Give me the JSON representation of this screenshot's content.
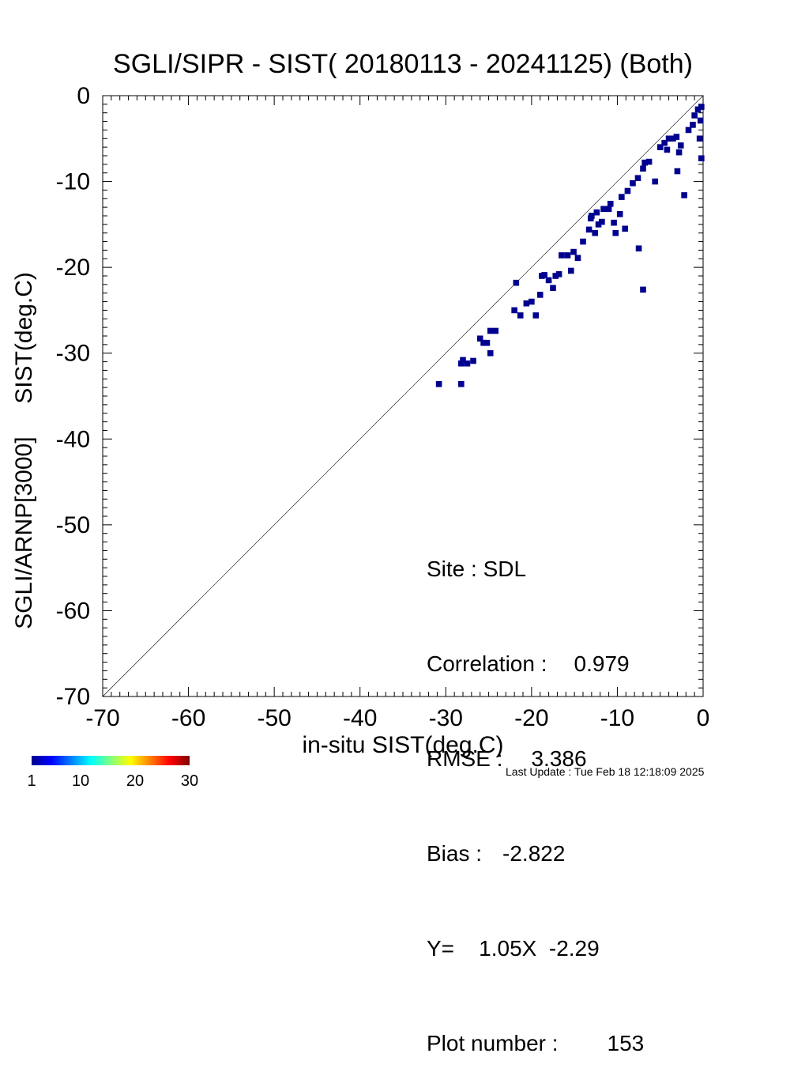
{
  "chart_data": {
    "type": "heatmap",
    "title": "SGLI/SIPR - SIST( 20180113 - 20241125) (Both)",
    "xlabel": "in-situ SIST(deg.C)",
    "ylabel": "SGLI/ARNP[3000]     SIST(deg.C)",
    "xlim": [
      -70,
      0
    ],
    "ylim": [
      -70,
      0
    ],
    "x_ticks": [
      "-70",
      "-60",
      "-50",
      "-40",
      "-30",
      "-20",
      "-10",
      "0"
    ],
    "y_ticks": [
      "0",
      "-10",
      "-20",
      "-30",
      "-40",
      "-50",
      "-60",
      "-70"
    ],
    "reference_line": "Y = X",
    "bin_size": 0.7,
    "cell_color": "#00008f",
    "colorbar": {
      "min": 1,
      "max": 30,
      "tick_labels": [
        "1",
        "10",
        "20",
        "30"
      ],
      "colors": [
        "#00008f",
        "#0000ff",
        "#0080ff",
        "#00ffff",
        "#80ff80",
        "#ffff00",
        "#ff8000",
        "#ff0000",
        "#800000"
      ]
    },
    "points": [
      [
        -30.8,
        -33.6
      ],
      [
        -28.2,
        -33.6
      ],
      [
        -28.2,
        -31.2
      ],
      [
        -27.5,
        -31.2
      ],
      [
        -26.8,
        -30.9
      ],
      [
        -28.0,
        -30.8
      ],
      [
        -26.0,
        -28.3
      ],
      [
        -25.2,
        -28.8
      ],
      [
        -24.8,
        -27.4
      ],
      [
        -24.2,
        -27.4
      ],
      [
        -25.6,
        -28.8
      ],
      [
        -24.8,
        -30.0
      ],
      [
        -22.0,
        -25.0
      ],
      [
        -21.3,
        -25.6
      ],
      [
        -20.6,
        -24.2
      ],
      [
        -20.0,
        -24.0
      ],
      [
        -19.5,
        -25.6
      ],
      [
        -21.8,
        -21.8
      ],
      [
        -19.0,
        -23.2
      ],
      [
        -18.8,
        -21.0
      ],
      [
        -18.0,
        -21.5
      ],
      [
        -17.5,
        -22.4
      ],
      [
        -18.5,
        -20.9
      ],
      [
        -17.2,
        -21.0
      ],
      [
        -16.8,
        -20.8
      ],
      [
        -15.8,
        -18.6
      ],
      [
        -15.1,
        -18.2
      ],
      [
        -15.4,
        -20.4
      ],
      [
        -16.5,
        -18.6
      ],
      [
        -14.6,
        -18.9
      ],
      [
        -14.0,
        -17.0
      ],
      [
        -13.3,
        -15.6
      ],
      [
        -12.6,
        -16.0
      ],
      [
        -13.0,
        -14.0
      ],
      [
        -12.2,
        -15.0
      ],
      [
        -11.6,
        -13.2
      ],
      [
        -11.0,
        -13.2
      ],
      [
        -10.4,
        -14.8
      ],
      [
        -9.7,
        -13.8
      ],
      [
        -10.2,
        -16.0
      ],
      [
        -9.1,
        -15.5
      ],
      [
        -9.5,
        -11.8
      ],
      [
        -8.8,
        -11.1
      ],
      [
        -8.2,
        -10.2
      ],
      [
        -7.6,
        -9.6
      ],
      [
        -7.0,
        -8.5
      ],
      [
        -6.8,
        -7.8
      ],
      [
        -6.3,
        -7.7
      ],
      [
        -5.6,
        -10.0
      ],
      [
        -5.0,
        -6.0
      ],
      [
        -4.5,
        -5.5
      ],
      [
        -4.0,
        -5.0
      ],
      [
        -3.5,
        -5.0
      ],
      [
        -3.1,
        -4.8
      ],
      [
        -2.6,
        -5.8
      ],
      [
        -3.0,
        -8.8
      ],
      [
        -2.2,
        -11.6
      ],
      [
        -1.7,
        -4.0
      ],
      [
        -1.2,
        -3.4
      ],
      [
        -1.0,
        -2.3
      ],
      [
        -0.6,
        -1.6
      ],
      [
        -0.2,
        -1.3
      ],
      [
        -0.3,
        -2.9
      ],
      [
        -0.4,
        -5.0
      ],
      [
        -0.2,
        -7.3
      ],
      [
        -2.8,
        -6.6
      ],
      [
        -7.5,
        -17.8
      ],
      [
        -7.0,
        -22.6
      ],
      [
        -13.1,
        -14.3
      ],
      [
        -12.4,
        -13.6
      ],
      [
        -11.8,
        -14.7
      ],
      [
        -10.8,
        -12.6
      ],
      [
        -4.2,
        -6.3
      ]
    ],
    "annotations": {
      "site": "Site : SDL",
      "correlation_label": "Correlation :",
      "correlation": "0.979",
      "rmse_label": "RMSE :",
      "rmse": "3.386",
      "bias_label": "Bias :",
      "bias": "-2.822",
      "fit": "Y=    1.05X  -2.29",
      "plot_number_label": "Plot number :",
      "plot_number": "153"
    },
    "last_update": "Last Update : Tue Feb 18 12:18:09 2025"
  }
}
